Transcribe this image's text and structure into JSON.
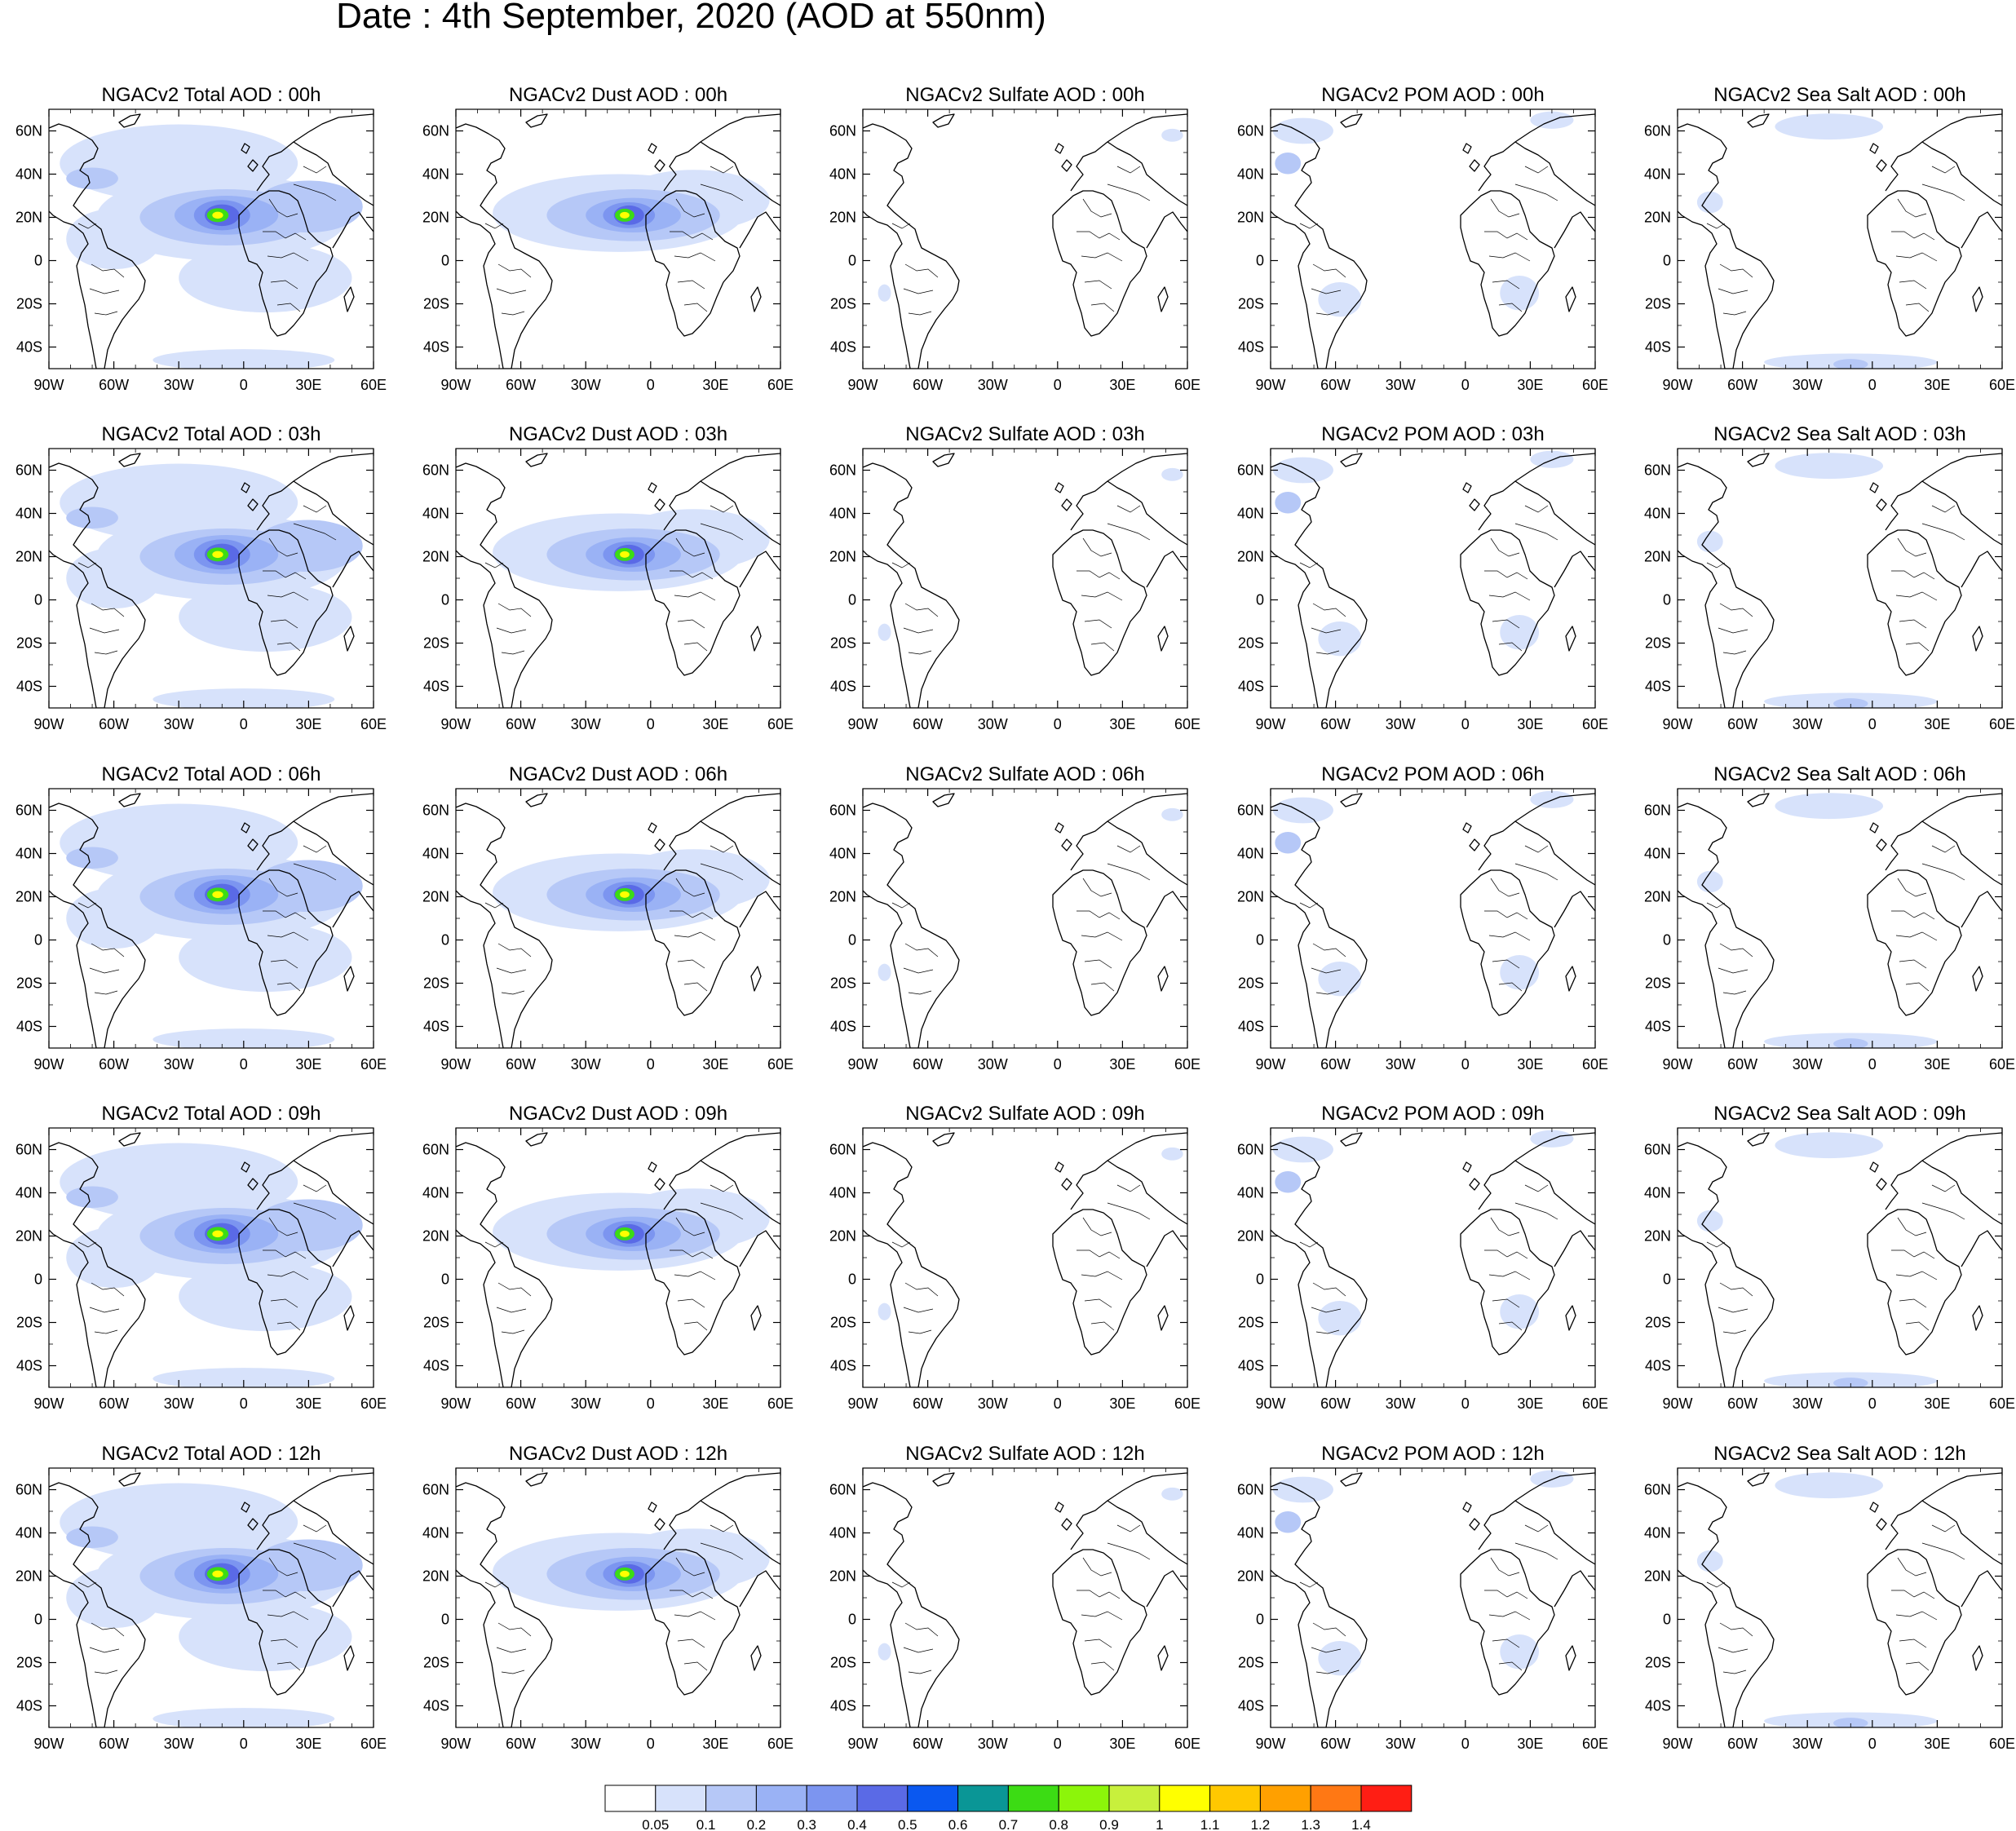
{
  "figure": {
    "title": "Date : 4th September, 2020 (AOD at 550nm)"
  },
  "axes": {
    "lon_labels": [
      "90W",
      "60W",
      "30W",
      "0",
      "30E",
      "60E"
    ],
    "lon_values": [
      -90,
      -60,
      -30,
      0,
      30,
      60
    ],
    "lat_labels": [
      "60N",
      "40N",
      "20N",
      "0",
      "20S",
      "40S"
    ],
    "lat_values": [
      60,
      40,
      20,
      0,
      -20,
      -40
    ],
    "lon_range": [
      -90,
      60
    ],
    "lat_range": [
      -50,
      70
    ]
  },
  "colors": {
    "background": "#ffffff",
    "frame": "#000000"
  },
  "species_order": [
    "total",
    "dust",
    "sulfate",
    "pom",
    "seasalt"
  ],
  "panel_titles": [
    [
      "NGACv2 Total AOD : 00h",
      "NGACv2 Dust AOD : 00h",
      "NGACv2 Sulfate AOD : 00h",
      "NGACv2 POM AOD : 00h",
      "NGACv2 Sea Salt AOD : 00h"
    ],
    [
      "NGACv2 Total AOD : 03h",
      "NGACv2 Dust AOD : 03h",
      "NGACv2 Sulfate AOD : 03h",
      "NGACv2 POM AOD : 03h",
      "NGACv2 Sea Salt AOD : 03h"
    ],
    [
      "NGACv2 Total AOD : 06h",
      "NGACv2 Dust AOD : 06h",
      "NGACv2 Sulfate AOD : 06h",
      "NGACv2 POM AOD : 06h",
      "NGACv2 Sea Salt AOD : 06h"
    ],
    [
      "NGACv2 Total AOD : 09h",
      "NGACv2 Dust AOD : 09h",
      "NGACv2 Sulfate AOD : 09h",
      "NGACv2 POM AOD : 09h",
      "NGACv2 Sea Salt  AOD : 09h"
    ],
    [
      "NGACv2 Total AOD  : 12h",
      "NGACv2 Dust AOD : 12h",
      "NGACv2 Sulfate AOD : 12h",
      "NGACv2 POM  AOD : 12h",
      "NGACv2 Sea Salt  AOD : 12h"
    ]
  ],
  "colorbar": {
    "labels": [
      "0.05",
      "0.1",
      "0.2",
      "0.3",
      "0.4",
      "0.5",
      "0.6",
      "0.7",
      "0.8",
      "0.9",
      "1",
      "1.1",
      "1.2",
      "1.3",
      "1.4"
    ],
    "colors": [
      "#ffffff",
      "#d7e2fb",
      "#b6c8f7",
      "#9ab2f5",
      "#7c95f0",
      "#5a6ae6",
      "#0a58f0",
      "#0a9696",
      "#3cdc14",
      "#8cf50a",
      "#c8f03c",
      "#ffff00",
      "#ffc800",
      "#ffa000",
      "#ff7814",
      "#ff1e14"
    ]
  },
  "aod_fields": {
    "total": [
      {
        "lon": -10,
        "lat": 20,
        "rx": 58,
        "ry": 20,
        "level": 1
      },
      {
        "lon": -30,
        "lat": 45,
        "rx": 55,
        "ry": 18,
        "level": 1
      },
      {
        "lon": 10,
        "lat": -8,
        "rx": 40,
        "ry": 16,
        "level": 1
      },
      {
        "lon": -60,
        "lat": 10,
        "rx": 22,
        "ry": 14,
        "level": 1
      },
      {
        "lon": 0,
        "lat": -46,
        "rx": 42,
        "ry": 5,
        "level": 1
      },
      {
        "lon": -8,
        "lat": 20,
        "rx": 40,
        "ry": 13,
        "level": 2
      },
      {
        "lon": 30,
        "lat": 25,
        "rx": 25,
        "ry": 12,
        "level": 2
      },
      {
        "lon": -70,
        "lat": 38,
        "rx": 12,
        "ry": 5,
        "level": 2
      },
      {
        "lon": -8,
        "lat": 21,
        "rx": 24,
        "ry": 9,
        "level": 3
      },
      {
        "lon": -10,
        "lat": 21,
        "rx": 13,
        "ry": 7,
        "level": 4
      },
      {
        "lon": -10,
        "lat": 21,
        "rx": 8,
        "ry": 5,
        "level": 5
      },
      {
        "lon": -12,
        "lat": 21,
        "rx": 5,
        "ry": 3.2,
        "level": 8
      },
      {
        "lon": -12,
        "lat": 21,
        "rx": 2.5,
        "ry": 1.6,
        "level": 11
      }
    ],
    "dust": [
      {
        "lon": -15,
        "lat": 22,
        "rx": 58,
        "ry": 18,
        "level": 1
      },
      {
        "lon": 20,
        "lat": 28,
        "rx": 35,
        "ry": 14,
        "level": 1
      },
      {
        "lon": -8,
        "lat": 21,
        "rx": 40,
        "ry": 12,
        "level": 2
      },
      {
        "lon": -8,
        "lat": 21,
        "rx": 22,
        "ry": 8,
        "level": 3
      },
      {
        "lon": -10,
        "lat": 21,
        "rx": 12,
        "ry": 6,
        "level": 4
      },
      {
        "lon": -10,
        "lat": 21,
        "rx": 7,
        "ry": 4.5,
        "level": 5
      },
      {
        "lon": -12,
        "lat": 21,
        "rx": 4.5,
        "ry": 3,
        "level": 8
      },
      {
        "lon": -12,
        "lat": 21,
        "rx": 2.2,
        "ry": 1.5,
        "level": 11
      }
    ],
    "sulfate": [
      {
        "lon": 53,
        "lat": 58,
        "rx": 5,
        "ry": 3,
        "level": 1
      },
      {
        "lon": -80,
        "lat": -15,
        "rx": 3,
        "ry": 4,
        "level": 1
      }
    ],
    "pom": [
      {
        "lon": -75,
        "lat": 60,
        "rx": 14,
        "ry": 6,
        "level": 1
      },
      {
        "lon": 25,
        "lat": -15,
        "rx": 9,
        "ry": 8,
        "level": 1
      },
      {
        "lon": -58,
        "lat": -18,
        "rx": 10,
        "ry": 8,
        "level": 1
      },
      {
        "lon": 40,
        "lat": 65,
        "rx": 10,
        "ry": 4,
        "level": 1
      },
      {
        "lon": -82,
        "lat": 45,
        "rx": 6,
        "ry": 5,
        "level": 2
      }
    ],
    "seasalt": [
      {
        "lon": -10,
        "lat": -47,
        "rx": 40,
        "ry": 4,
        "level": 1
      },
      {
        "lon": -75,
        "lat": 27,
        "rx": 6,
        "ry": 5,
        "level": 1
      },
      {
        "lon": -20,
        "lat": 62,
        "rx": 25,
        "ry": 6,
        "level": 1
      },
      {
        "lon": -10,
        "lat": -48,
        "rx": 8,
        "ry": 2.5,
        "level": 2
      }
    ]
  }
}
